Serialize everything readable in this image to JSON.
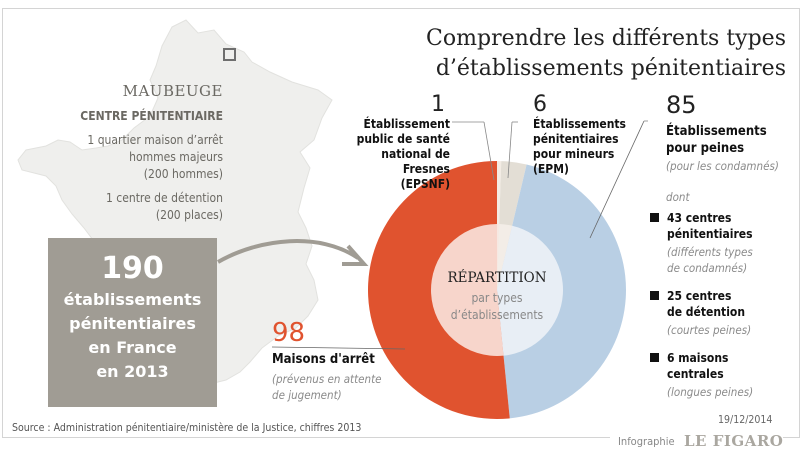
{
  "title": [
    "Comprendre les différents types",
    "d’établissements pénitentiaires"
  ],
  "map": {
    "city": "MAUBEUGE",
    "type": "CENTRE PÉNITENTIAIRE",
    "detail1": [
      "1 quartier maison d’arrêt",
      "hommes majeurs",
      "(200 hommes)"
    ],
    "detail2": [
      "1 centre de détention",
      "(200 places)"
    ]
  },
  "total": {
    "number": "190",
    "label": [
      "établissements",
      "pénitentiaires",
      "en France",
      "en 2013"
    ]
  },
  "center": {
    "title": "RÉPARTITION",
    "subtitle": [
      "par types",
      "d’établissements"
    ]
  },
  "labels": {
    "epsnf": {
      "num": "1",
      "text": [
        "Établissement",
        "public de santé",
        "national de",
        "Fresnes (EPSNF)"
      ]
    },
    "epm": {
      "num": "6",
      "text": [
        "Établissements",
        "pénitentiaires",
        "pour mineurs",
        "(EPM)"
      ]
    },
    "peines": {
      "num": "85",
      "text": [
        "Établissements",
        "pour peines"
      ],
      "note": "(pour les condamnés)",
      "dont": "dont"
    },
    "arret": {
      "num": "98",
      "text": "Maisons d'arrêt",
      "note": [
        "(prévenus en attente",
        "de jugement)"
      ]
    }
  },
  "sub_items": [
    {
      "title": [
        "43 centres",
        "pénitentiaires"
      ],
      "note": [
        "(différents types",
        "de condamnés)"
      ]
    },
    {
      "title": [
        "25 centres",
        "de détention"
      ],
      "note": [
        "(courtes peines)"
      ]
    },
    {
      "title": [
        "6 maisons",
        "centrales"
      ],
      "note": [
        "(longues peines)"
      ]
    }
  ],
  "source": "Source : Administration pénitentiaire/ministère de la Justice, chiffres 2013",
  "date": "19/12/2014",
  "credit": "Infographie",
  "brand": "LE FIGARO",
  "chart_data": {
    "type": "pie",
    "title": "RÉPARTITION par types d’établissements",
    "categories": [
      "Établissement public de santé national de Fresnes (EPSNF)",
      "Établissements pénitentiaires pour mineurs (EPM)",
      "Établissements pour peines",
      "Maisons d'arrêt"
    ],
    "values": [
      1,
      6,
      85,
      98
    ],
    "colors": [
      "#f3ece4",
      "#e3ded5",
      "#b9cfe4",
      "#e0532f"
    ],
    "inner_colors": [
      "#f7e8e2",
      "#f3ede7",
      "#e8eef5",
      "#f7d5cb"
    ],
    "total": 190,
    "donut": true,
    "start": "top",
    "direction": "clockwise",
    "sub_breakdown": {
      "parent": "Établissements pour peines",
      "categories": [
        "centres pénitentiaires",
        "centres de détention",
        "maisons centrales"
      ],
      "values": [
        43,
        25,
        6
      ]
    }
  }
}
